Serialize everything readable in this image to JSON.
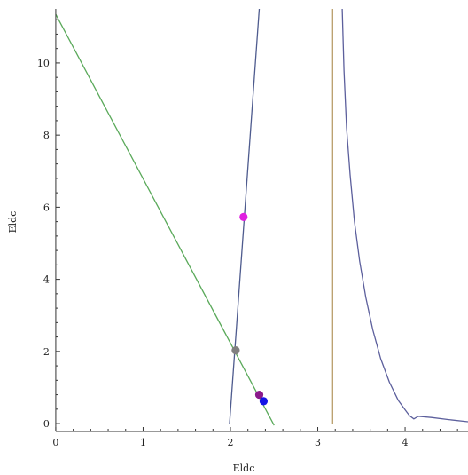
{
  "chart_data": {
    "type": "line",
    "xlabel": "Eldc",
    "ylabel": "Eldc",
    "xlim": [
      -0.05,
      4.72
    ],
    "ylim": [
      -0.22,
      11.5
    ],
    "frame": "left-and-bottom-axes",
    "grid": false,
    "legend": "none",
    "x_ticks": [
      {
        "value": 0,
        "label": "0"
      },
      {
        "value": 1,
        "label": "1"
      },
      {
        "value": 2,
        "label": "2"
      },
      {
        "value": 3,
        "label": "3"
      },
      {
        "value": 4,
        "label": "4"
      }
    ],
    "y_ticks": [
      {
        "value": 0,
        "label": "0"
      },
      {
        "value": 2,
        "label": "2"
      },
      {
        "value": 4,
        "label": "4"
      },
      {
        "value": 6,
        "label": "6"
      },
      {
        "value": 8,
        "label": "8"
      },
      {
        "value": 10,
        "label": "10"
      }
    ],
    "series": [
      {
        "color": "#5aa95a",
        "points": [
          [
            0.0,
            11.35
          ],
          [
            2.5,
            -0.05
          ]
        ]
      },
      {
        "color": "#4e5b8e",
        "points": [
          [
            1.99,
            0.0
          ],
          [
            2.33,
            11.5
          ]
        ]
      },
      {
        "color": "#b89e6a",
        "points": [
          [
            3.17,
            0.0
          ],
          [
            3.17,
            11.5
          ]
        ]
      },
      {
        "color": "#5c5f9c",
        "points": [
          [
            3.28,
            11.5
          ],
          [
            3.3,
            9.8
          ],
          [
            3.33,
            8.2
          ],
          [
            3.37,
            6.9
          ],
          [
            3.42,
            5.6
          ],
          [
            3.48,
            4.5
          ],
          [
            3.55,
            3.5
          ],
          [
            3.63,
            2.6
          ],
          [
            3.72,
            1.8
          ],
          [
            3.82,
            1.15
          ],
          [
            3.92,
            0.65
          ],
          [
            4.0,
            0.38
          ],
          [
            4.05,
            0.22
          ],
          [
            4.1,
            0.13
          ],
          [
            4.15,
            0.2
          ],
          [
            4.3,
            0.17
          ],
          [
            4.5,
            0.11
          ],
          [
            4.72,
            0.05
          ]
        ]
      }
    ],
    "points": [
      {
        "x": 2.15,
        "y": 5.73,
        "color": "#e020e0"
      },
      {
        "x": 2.06,
        "y": 2.03,
        "color": "#808080"
      },
      {
        "x": 2.33,
        "y": 0.8,
        "color": "#8b1a8b"
      },
      {
        "x": 2.38,
        "y": 0.62,
        "color": "#1414e6"
      }
    ]
  }
}
